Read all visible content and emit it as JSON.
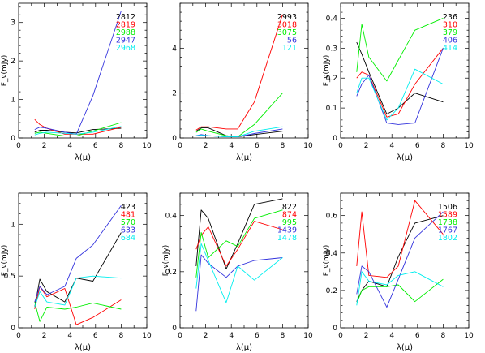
{
  "chart_data": [
    {
      "type": "line",
      "xlabel": "λ(μ)",
      "ylabel": "F_ν(mJy)",
      "xlim": [
        0,
        10
      ],
      "ylim": [
        0,
        3.5
      ],
      "xticks": [
        "0",
        "2",
        "4",
        "6",
        "8",
        "10"
      ],
      "yticks": [
        0,
        1,
        2,
        3
      ],
      "series": [
        {
          "name": "2812",
          "color": "#000000",
          "x": [
            1.25,
            1.65,
            2.2,
            3.6,
            4.5,
            5.8,
            8.0
          ],
          "y": [
            0.15,
            0.2,
            0.2,
            0.15,
            0.13,
            0.22,
            0.25
          ]
        },
        {
          "name": "2819",
          "color": "#ff0000",
          "x": [
            1.25,
            1.65,
            2.2,
            3.6,
            4.5,
            5.8,
            8.0
          ],
          "y": [
            0.48,
            0.35,
            0.25,
            0.1,
            0.1,
            0.1,
            0.28
          ]
        },
        {
          "name": "2988",
          "color": "#00ee00",
          "x": [
            1.25,
            1.65,
            2.2,
            3.6,
            4.5,
            5.8,
            8.0
          ],
          "y": [
            0.12,
            0.15,
            0.12,
            0.05,
            0.05,
            0.18,
            0.4
          ]
        },
        {
          "name": "2947",
          "color": "#3333dd",
          "x": [
            1.25,
            1.65,
            2.2,
            3.6,
            4.5,
            5.8,
            8.0
          ],
          "y": [
            0.22,
            0.28,
            0.25,
            0.15,
            0.1,
            1.1,
            3.3
          ]
        },
        {
          "name": "2968",
          "color": "#00eeee",
          "x": [
            1.25,
            1.65,
            2.2,
            3.6,
            4.5,
            5.8,
            8.0
          ],
          "y": [
            0.08,
            0.12,
            0.15,
            0.12,
            0.1,
            0.15,
            0.3
          ]
        }
      ]
    },
    {
      "type": "line",
      "xlabel": "λ(μ)",
      "ylabel": "",
      "xlim": [
        0,
        10
      ],
      "ylim": [
        0,
        6
      ],
      "xticks": [
        "0",
        "2",
        "4",
        "6",
        "8",
        "10"
      ],
      "yticks": [
        0,
        2,
        4
      ],
      "series": [
        {
          "name": "2993",
          "color": "#000000",
          "x": [
            1.25,
            1.65,
            2.2,
            3.6,
            4.5,
            5.8,
            8.0
          ],
          "y": [
            0.3,
            0.45,
            0.45,
            0.1,
            0.05,
            0.15,
            0.3
          ]
        },
        {
          "name": "3018",
          "color": "#ff0000",
          "x": [
            1.25,
            1.65,
            2.2,
            3.6,
            4.5,
            5.8,
            8.0
          ],
          "y": [
            0.35,
            0.5,
            0.5,
            0.4,
            0.4,
            1.6,
            5.5
          ]
        },
        {
          "name": "3075",
          "color": "#00ee00",
          "x": [
            1.25,
            1.65,
            2.2,
            3.6,
            4.5,
            5.8,
            8.0
          ],
          "y": [
            0.25,
            0.4,
            0.3,
            0.1,
            0.05,
            0.6,
            2.0
          ]
        },
        {
          "name": "56",
          "color": "#3333dd",
          "x": [
            1.25,
            1.65,
            2.2,
            3.6,
            4.5,
            5.8,
            8.0
          ],
          "y": [
            0.1,
            0.15,
            0.1,
            0.05,
            0.05,
            0.2,
            0.4
          ]
        },
        {
          "name": "121",
          "color": "#00eeee",
          "x": [
            1.25,
            1.65,
            2.2,
            3.6,
            4.5,
            5.8,
            8.0
          ],
          "y": [
            0.1,
            0.12,
            0.1,
            0.05,
            0.05,
            0.3,
            0.5
          ]
        }
      ]
    },
    {
      "type": "line",
      "xlabel": "λ(μ)",
      "ylabel": "F_ν(mJy)",
      "xlim": [
        0,
        10
      ],
      "ylim": [
        0,
        0.45
      ],
      "xticks": [
        "0",
        "2",
        "4",
        "6",
        "8",
        "10"
      ],
      "yticks": [
        0,
        0.1,
        0.2,
        0.3,
        0.4
      ],
      "series": [
        {
          "name": "236",
          "color": "#000000",
          "x": [
            1.25,
            1.65,
            2.2,
            3.6,
            4.5,
            5.8,
            8.0
          ],
          "y": [
            0.32,
            0.28,
            0.22,
            0.08,
            0.1,
            0.15,
            0.12
          ]
        },
        {
          "name": "310",
          "color": "#ff0000",
          "x": [
            1.25,
            1.65,
            2.2,
            3.6,
            4.5,
            5.8,
            8.0
          ],
          "y": [
            0.2,
            0.22,
            0.21,
            0.07,
            0.08,
            0.18,
            0.3
          ]
        },
        {
          "name": "379",
          "color": "#00ee00",
          "x": [
            1.25,
            1.65,
            2.2,
            3.6,
            4.5,
            5.8,
            8.0
          ],
          "y": [
            0.22,
            0.38,
            0.27,
            0.19,
            0.26,
            0.36,
            0.4
          ]
        },
        {
          "name": "406",
          "color": "#3333dd",
          "x": [
            1.25,
            1.65,
            2.2,
            3.6,
            4.5,
            5.8,
            8.0
          ],
          "y": [
            0.14,
            0.18,
            0.21,
            0.05,
            0.045,
            0.05,
            0.3
          ]
        },
        {
          "name": "414",
          "color": "#00eeee",
          "x": [
            1.25,
            1.65,
            2.2,
            3.6,
            4.5,
            5.8,
            8.0
          ],
          "y": [
            0.15,
            0.2,
            0.2,
            0.06,
            0.1,
            0.23,
            0.18
          ]
        }
      ]
    },
    {
      "type": "line",
      "xlabel": "λ(μ)",
      "ylabel": "F_ν(mJy)",
      "xlim": [
        0,
        10
      ],
      "ylim": [
        0,
        1.3
      ],
      "xticks": [
        "0",
        "2",
        "4",
        "6",
        "8",
        "10"
      ],
      "yticks": [
        0,
        0.5,
        1
      ],
      "series": [
        {
          "name": "423",
          "color": "#000000",
          "x": [
            1.25,
            1.65,
            2.2,
            3.6,
            4.5,
            5.8,
            8.0
          ],
          "y": [
            0.2,
            0.47,
            0.35,
            0.25,
            0.48,
            0.45,
            0.92
          ]
        },
        {
          "name": "481",
          "color": "#ff0000",
          "x": [
            1.25,
            1.65,
            2.2,
            3.6,
            4.5,
            5.8,
            8.0
          ],
          "y": [
            0.18,
            0.4,
            0.3,
            0.38,
            0.03,
            0.1,
            0.27
          ]
        },
        {
          "name": "570",
          "color": "#00ee00",
          "x": [
            1.25,
            1.65,
            2.2,
            3.6,
            4.5,
            5.8,
            8.0
          ],
          "y": [
            0.25,
            0.06,
            0.2,
            0.18,
            0.2,
            0.24,
            0.18
          ]
        },
        {
          "name": "633",
          "color": "#3333dd",
          "x": [
            1.25,
            1.65,
            2.2,
            3.6,
            4.5,
            5.8,
            8.0
          ],
          "y": [
            0.25,
            0.4,
            0.32,
            0.4,
            0.67,
            0.8,
            1.18
          ]
        },
        {
          "name": "684",
          "color": "#00eeee",
          "x": [
            1.25,
            1.65,
            2.2,
            3.6,
            4.5,
            5.8,
            8.0
          ],
          "y": [
            0.2,
            0.35,
            0.25,
            0.22,
            0.48,
            0.5,
            0.48
          ]
        }
      ]
    },
    {
      "type": "line",
      "xlabel": "λ(μ)",
      "ylabel": "F_ν(mJy)",
      "xlim": [
        0,
        10
      ],
      "ylim": [
        0,
        0.48
      ],
      "xticks": [
        "0",
        "2",
        "4",
        "6",
        "8",
        "10"
      ],
      "yticks": [
        0,
        0.2,
        0.4
      ],
      "series": [
        {
          "name": "822",
          "color": "#000000",
          "x": [
            1.25,
            1.65,
            2.2,
            3.6,
            4.5,
            5.8,
            8.0
          ],
          "y": [
            0.22,
            0.42,
            0.39,
            0.21,
            0.3,
            0.44,
            0.46
          ]
        },
        {
          "name": "874",
          "color": "#ff0000",
          "x": [
            1.25,
            1.65,
            2.2,
            3.6,
            4.5,
            5.8,
            8.0
          ],
          "y": [
            0.28,
            0.33,
            0.36,
            0.22,
            0.28,
            0.38,
            0.35
          ]
        },
        {
          "name": "995",
          "color": "#00ee00",
          "x": [
            1.25,
            1.65,
            2.2,
            3.6,
            4.5,
            5.8,
            8.0
          ],
          "y": [
            0.18,
            0.34,
            0.25,
            0.31,
            0.29,
            0.39,
            0.42
          ]
        },
        {
          "name": "1439",
          "color": "#3333dd",
          "x": [
            1.25,
            1.65,
            2.2,
            3.6,
            4.5,
            5.8,
            8.0
          ],
          "y": [
            0.06,
            0.26,
            0.23,
            0.18,
            0.22,
            0.24,
            0.25
          ]
        },
        {
          "name": "1478",
          "color": "#00eeee",
          "x": [
            1.25,
            1.65,
            2.2,
            3.6,
            4.5,
            5.8,
            8.0
          ],
          "y": [
            0.14,
            0.3,
            0.24,
            0.09,
            0.22,
            0.17,
            0.25
          ]
        }
      ]
    },
    {
      "type": "line",
      "xlabel": "λ(μ)",
      "ylabel": "F_ν(mJy)",
      "xlim": [
        0,
        10
      ],
      "ylim": [
        0,
        0.72
      ],
      "xticks": [
        "0",
        "2",
        "4",
        "6",
        "8",
        "10"
      ],
      "yticks": [
        0,
        0.2,
        0.4,
        0.6
      ],
      "series": [
        {
          "name": "1506",
          "color": "#000000",
          "x": [
            1.25,
            1.65,
            2.2,
            3.6,
            4.5,
            5.8,
            8.0
          ],
          "y": [
            0.14,
            0.2,
            0.25,
            0.22,
            0.38,
            0.56,
            0.6
          ]
        },
        {
          "name": "1589",
          "color": "#ff0000",
          "x": [
            1.25,
            1.65,
            2.2,
            3.6,
            4.5,
            5.8,
            8.0
          ],
          "y": [
            0.33,
            0.62,
            0.28,
            0.27,
            0.33,
            0.68,
            0.5
          ]
        },
        {
          "name": "1738",
          "color": "#00ee00",
          "x": [
            1.25,
            1.65,
            2.2,
            3.6,
            4.5,
            5.8,
            8.0
          ],
          "y": [
            0.13,
            0.2,
            0.22,
            0.22,
            0.23,
            0.14,
            0.26
          ]
        },
        {
          "name": "1767",
          "color": "#3333dd",
          "x": [
            1.25,
            1.65,
            2.2,
            3.6,
            4.5,
            5.8,
            8.0
          ],
          "y": [
            0.18,
            0.33,
            0.3,
            0.11,
            0.26,
            0.48,
            0.62
          ]
        },
        {
          "name": "1802",
          "color": "#00eeee",
          "x": [
            1.25,
            1.65,
            2.2,
            3.6,
            4.5,
            5.8,
            8.0
          ],
          "y": [
            0.12,
            0.3,
            0.25,
            0.23,
            0.28,
            0.3,
            0.22
          ]
        }
      ]
    }
  ]
}
